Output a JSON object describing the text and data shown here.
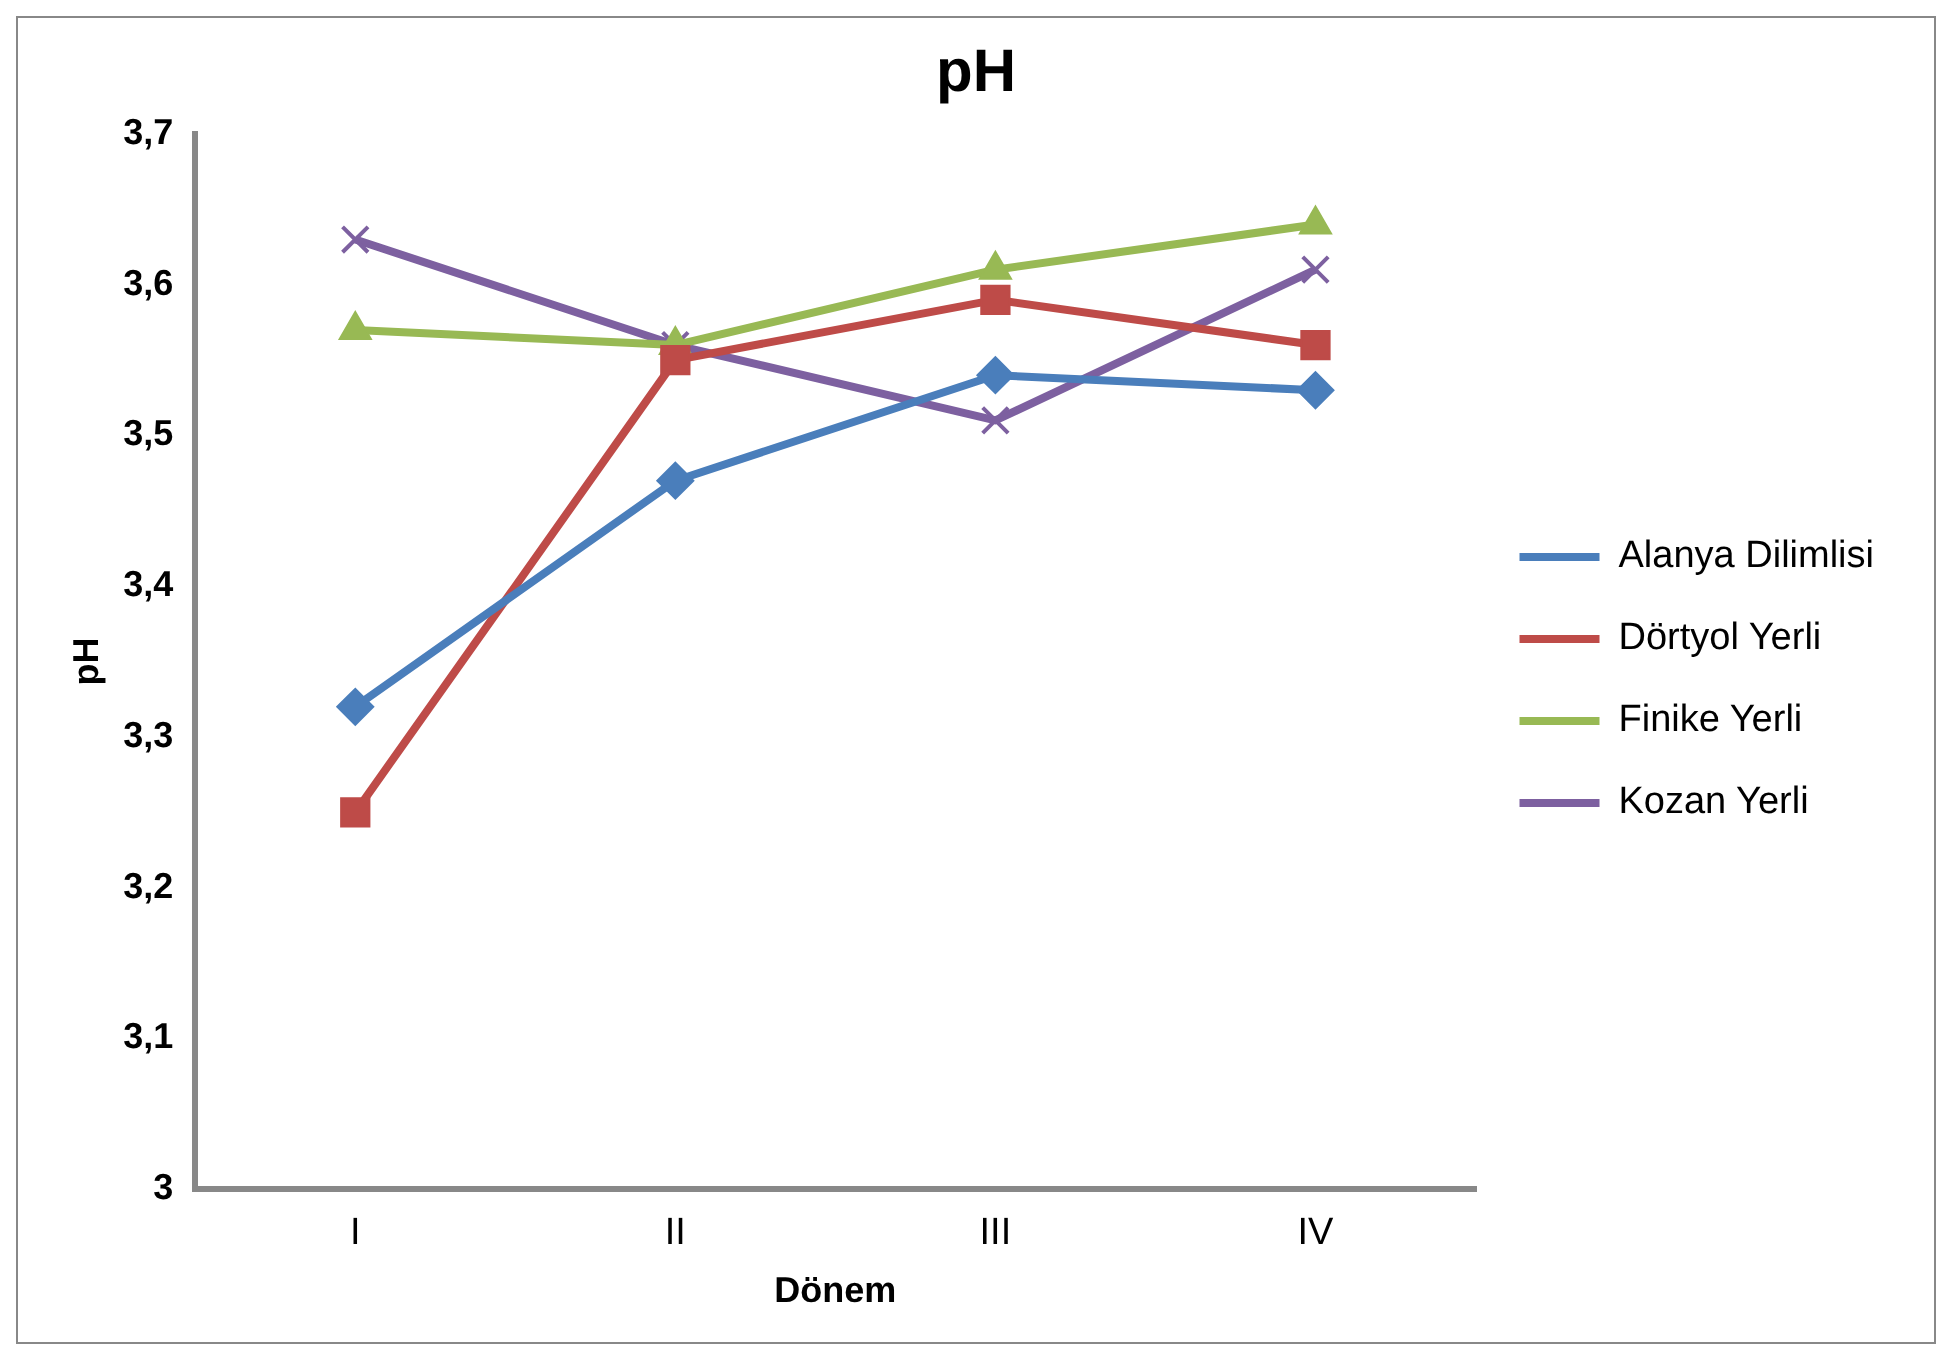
{
  "chart_data": {
    "type": "line",
    "title": "pH",
    "xlabel": "Dönem",
    "ylabel": "pH",
    "categories": [
      "I",
      "II",
      "III",
      "IV"
    ],
    "series": [
      {
        "name": "Alanya Dilimlisi",
        "color": "#4a7ebb",
        "marker": "diamond",
        "values": [
          3.32,
          3.47,
          3.54,
          3.53
        ]
      },
      {
        "name": "Dörtyol Yerli",
        "color": "#be4b48",
        "marker": "square",
        "values": [
          3.25,
          3.55,
          3.59,
          3.56
        ]
      },
      {
        "name": "Finike Yerli",
        "color": "#98b954",
        "marker": "triangle",
        "values": [
          3.57,
          3.56,
          3.61,
          3.64
        ]
      },
      {
        "name": "Kozan Yerli",
        "color": "#7d60a0",
        "marker": "cross",
        "values": [
          3.63,
          3.56,
          3.51,
          3.61
        ]
      }
    ],
    "ylim": [
      3,
      3.7
    ],
    "yticks": [
      3,
      {
        "value": 3.1,
        "label": "3,1"
      },
      {
        "value": 3.2,
        "label": "3,2"
      },
      {
        "value": 3.3,
        "label": "3,3"
      },
      {
        "value": 3.4,
        "label": "3,4"
      },
      {
        "value": 3.5,
        "label": "3,5"
      },
      {
        "value": 3.6,
        "label": "3,6"
      },
      {
        "value": 3.7,
        "label": "3,7"
      }
    ],
    "grid": false,
    "legend": "right",
    "line_style": "solid"
  }
}
